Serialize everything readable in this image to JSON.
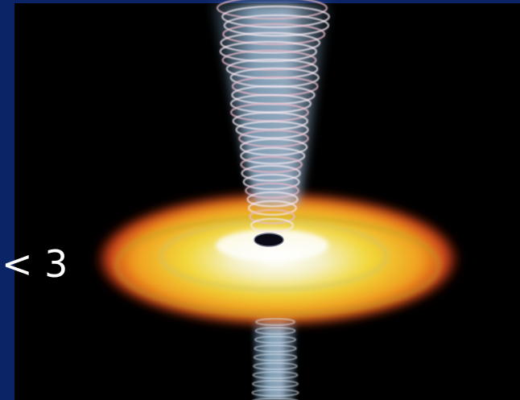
{
  "slide": {
    "caption": "< 3"
  }
}
